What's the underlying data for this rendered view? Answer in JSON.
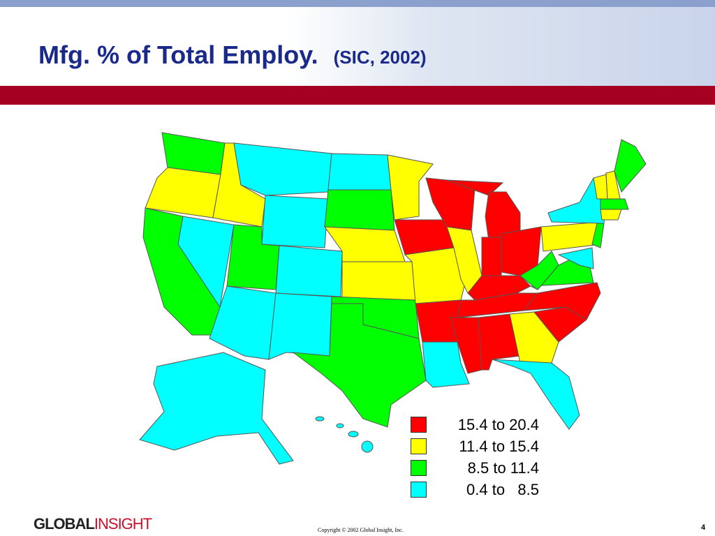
{
  "header": {
    "title": "Mfg. % of Total Employ.",
    "subtitle": "(SIC, 2002)"
  },
  "legend": {
    "items": [
      {
        "label": "15.4 to 20.4",
        "color": "#ff0000"
      },
      {
        "label": "11.4 to 15.4",
        "color": "#ffff00"
      },
      {
        "label": "8.5 to 11.4",
        "color": "#00ff00"
      },
      {
        "label": "0.4 to   8.5",
        "color": "#00ffff"
      }
    ]
  },
  "footer": {
    "logo_bold": "GLOBAL",
    "logo_light": "INSIGHT",
    "copyright": "Copyright © 2002 Global Insight, Inc.",
    "page": "4"
  }
}
